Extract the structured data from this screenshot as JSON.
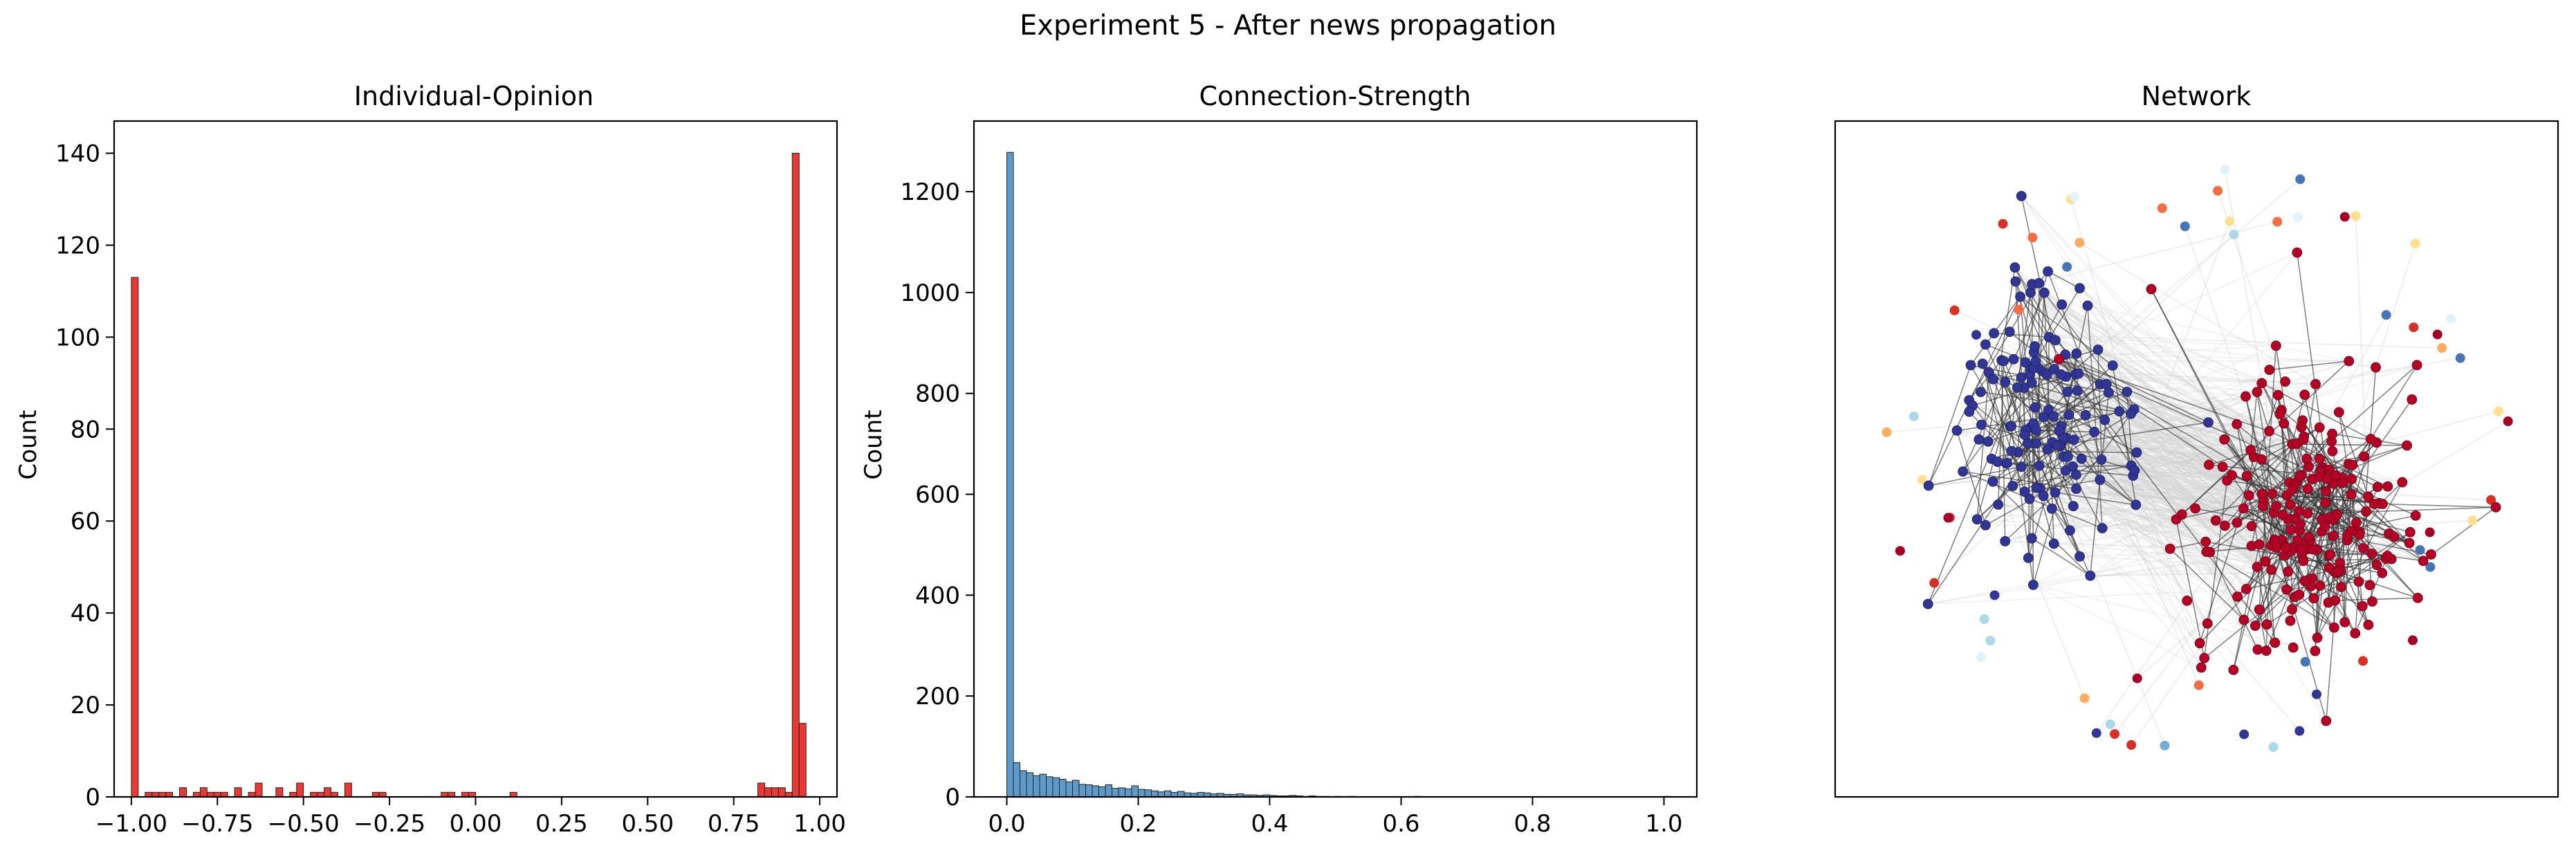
{
  "figure": {
    "suptitle": "Experiment 5 - After news propagation"
  },
  "chart_data": [
    {
      "type": "bar",
      "title": "Individual-Opinion",
      "xlabel": "",
      "ylabel": "Count",
      "xlim": [
        -1.05,
        1.05
      ],
      "ylim": [
        0,
        147
      ],
      "color": "#e8231f",
      "xticks": [
        -1.0,
        -0.75,
        -0.5,
        -0.25,
        0.0,
        0.25,
        0.5,
        0.75,
        1.0
      ],
      "xtick_labels": [
        "−1.00",
        "−0.75",
        "−0.50",
        "−0.25",
        "0.00",
        "0.25",
        "0.50",
        "0.75",
        "1.00"
      ],
      "yticks": [
        0,
        20,
        40,
        60,
        80,
        100,
        120,
        140
      ],
      "ytick_labels": [
        "0",
        "20",
        "40",
        "60",
        "80",
        "100",
        "120",
        "140"
      ],
      "bin_start": -1.0,
      "bin_width": 0.02,
      "bin_counts": [
        113,
        0,
        1,
        1,
        1,
        1,
        0,
        2,
        0,
        1,
        2,
        1,
        1,
        1,
        0,
        2,
        0,
        1,
        3,
        0,
        0,
        2,
        0,
        1,
        3,
        0,
        1,
        1,
        2,
        1,
        0,
        3,
        0,
        0,
        0,
        1,
        1,
        0,
        0,
        0,
        0,
        0,
        0,
        0,
        0,
        1,
        1,
        0,
        1,
        1,
        0,
        0,
        0,
        0,
        0,
        1,
        0,
        0,
        0,
        0,
        0,
        0,
        0,
        0,
        0,
        0,
        0,
        0,
        0,
        0,
        0,
        0,
        0,
        0,
        0,
        0,
        0,
        0,
        0,
        0,
        0,
        0,
        0,
        0,
        0,
        0,
        0,
        0,
        0,
        0,
        0,
        3,
        2,
        2,
        2,
        1,
        140,
        16
      ]
    },
    {
      "type": "bar",
      "title": "Connection-Strength",
      "xlabel": "",
      "ylabel": "Count",
      "xlim": [
        -0.05,
        1.05
      ],
      "ylim": [
        0,
        1340
      ],
      "color": "#4c8fc2",
      "xticks": [
        0.0,
        0.2,
        0.4,
        0.6,
        0.8,
        1.0
      ],
      "xtick_labels": [
        "0.0",
        "0.2",
        "0.4",
        "0.6",
        "0.8",
        "1.0"
      ],
      "yticks": [
        0,
        200,
        400,
        600,
        800,
        1000,
        1200
      ],
      "ytick_labels": [
        "0",
        "200",
        "400",
        "600",
        "800",
        "1000",
        "1200"
      ],
      "bin_start": 0.0,
      "bin_width": 0.01,
      "bin_counts": [
        1278,
        68,
        52,
        48,
        42,
        45,
        40,
        38,
        35,
        30,
        33,
        25,
        24,
        22,
        20,
        24,
        17,
        18,
        16,
        22,
        15,
        14,
        12,
        10,
        12,
        9,
        11,
        8,
        7,
        9,
        8,
        6,
        7,
        5,
        5,
        6,
        4,
        4,
        3,
        4,
        3,
        2,
        2,
        3,
        2,
        1,
        2,
        1,
        1,
        0,
        1,
        0,
        1,
        0,
        0,
        0,
        0,
        0,
        0,
        0,
        0,
        0,
        1,
        0,
        0,
        0,
        0,
        0,
        0,
        0,
        0,
        0,
        0,
        0,
        0,
        0,
        0,
        0,
        0,
        0,
        0,
        0,
        0,
        0,
        0,
        0,
        0,
        0,
        0,
        0,
        0,
        0,
        0,
        0,
        0,
        0,
        0,
        0,
        0,
        0,
        1
      ]
    },
    {
      "type": "network",
      "title": "Network",
      "colors": {
        "left_cluster": "#313695",
        "right_cluster": "#b40426",
        "edge_dark": "#333333",
        "edge_light": "#d0d0d0"
      },
      "left_cluster": {
        "nodes": 140
      },
      "right_cluster": {
        "nodes": 220
      },
      "isolated_nodes": 60
    }
  ]
}
